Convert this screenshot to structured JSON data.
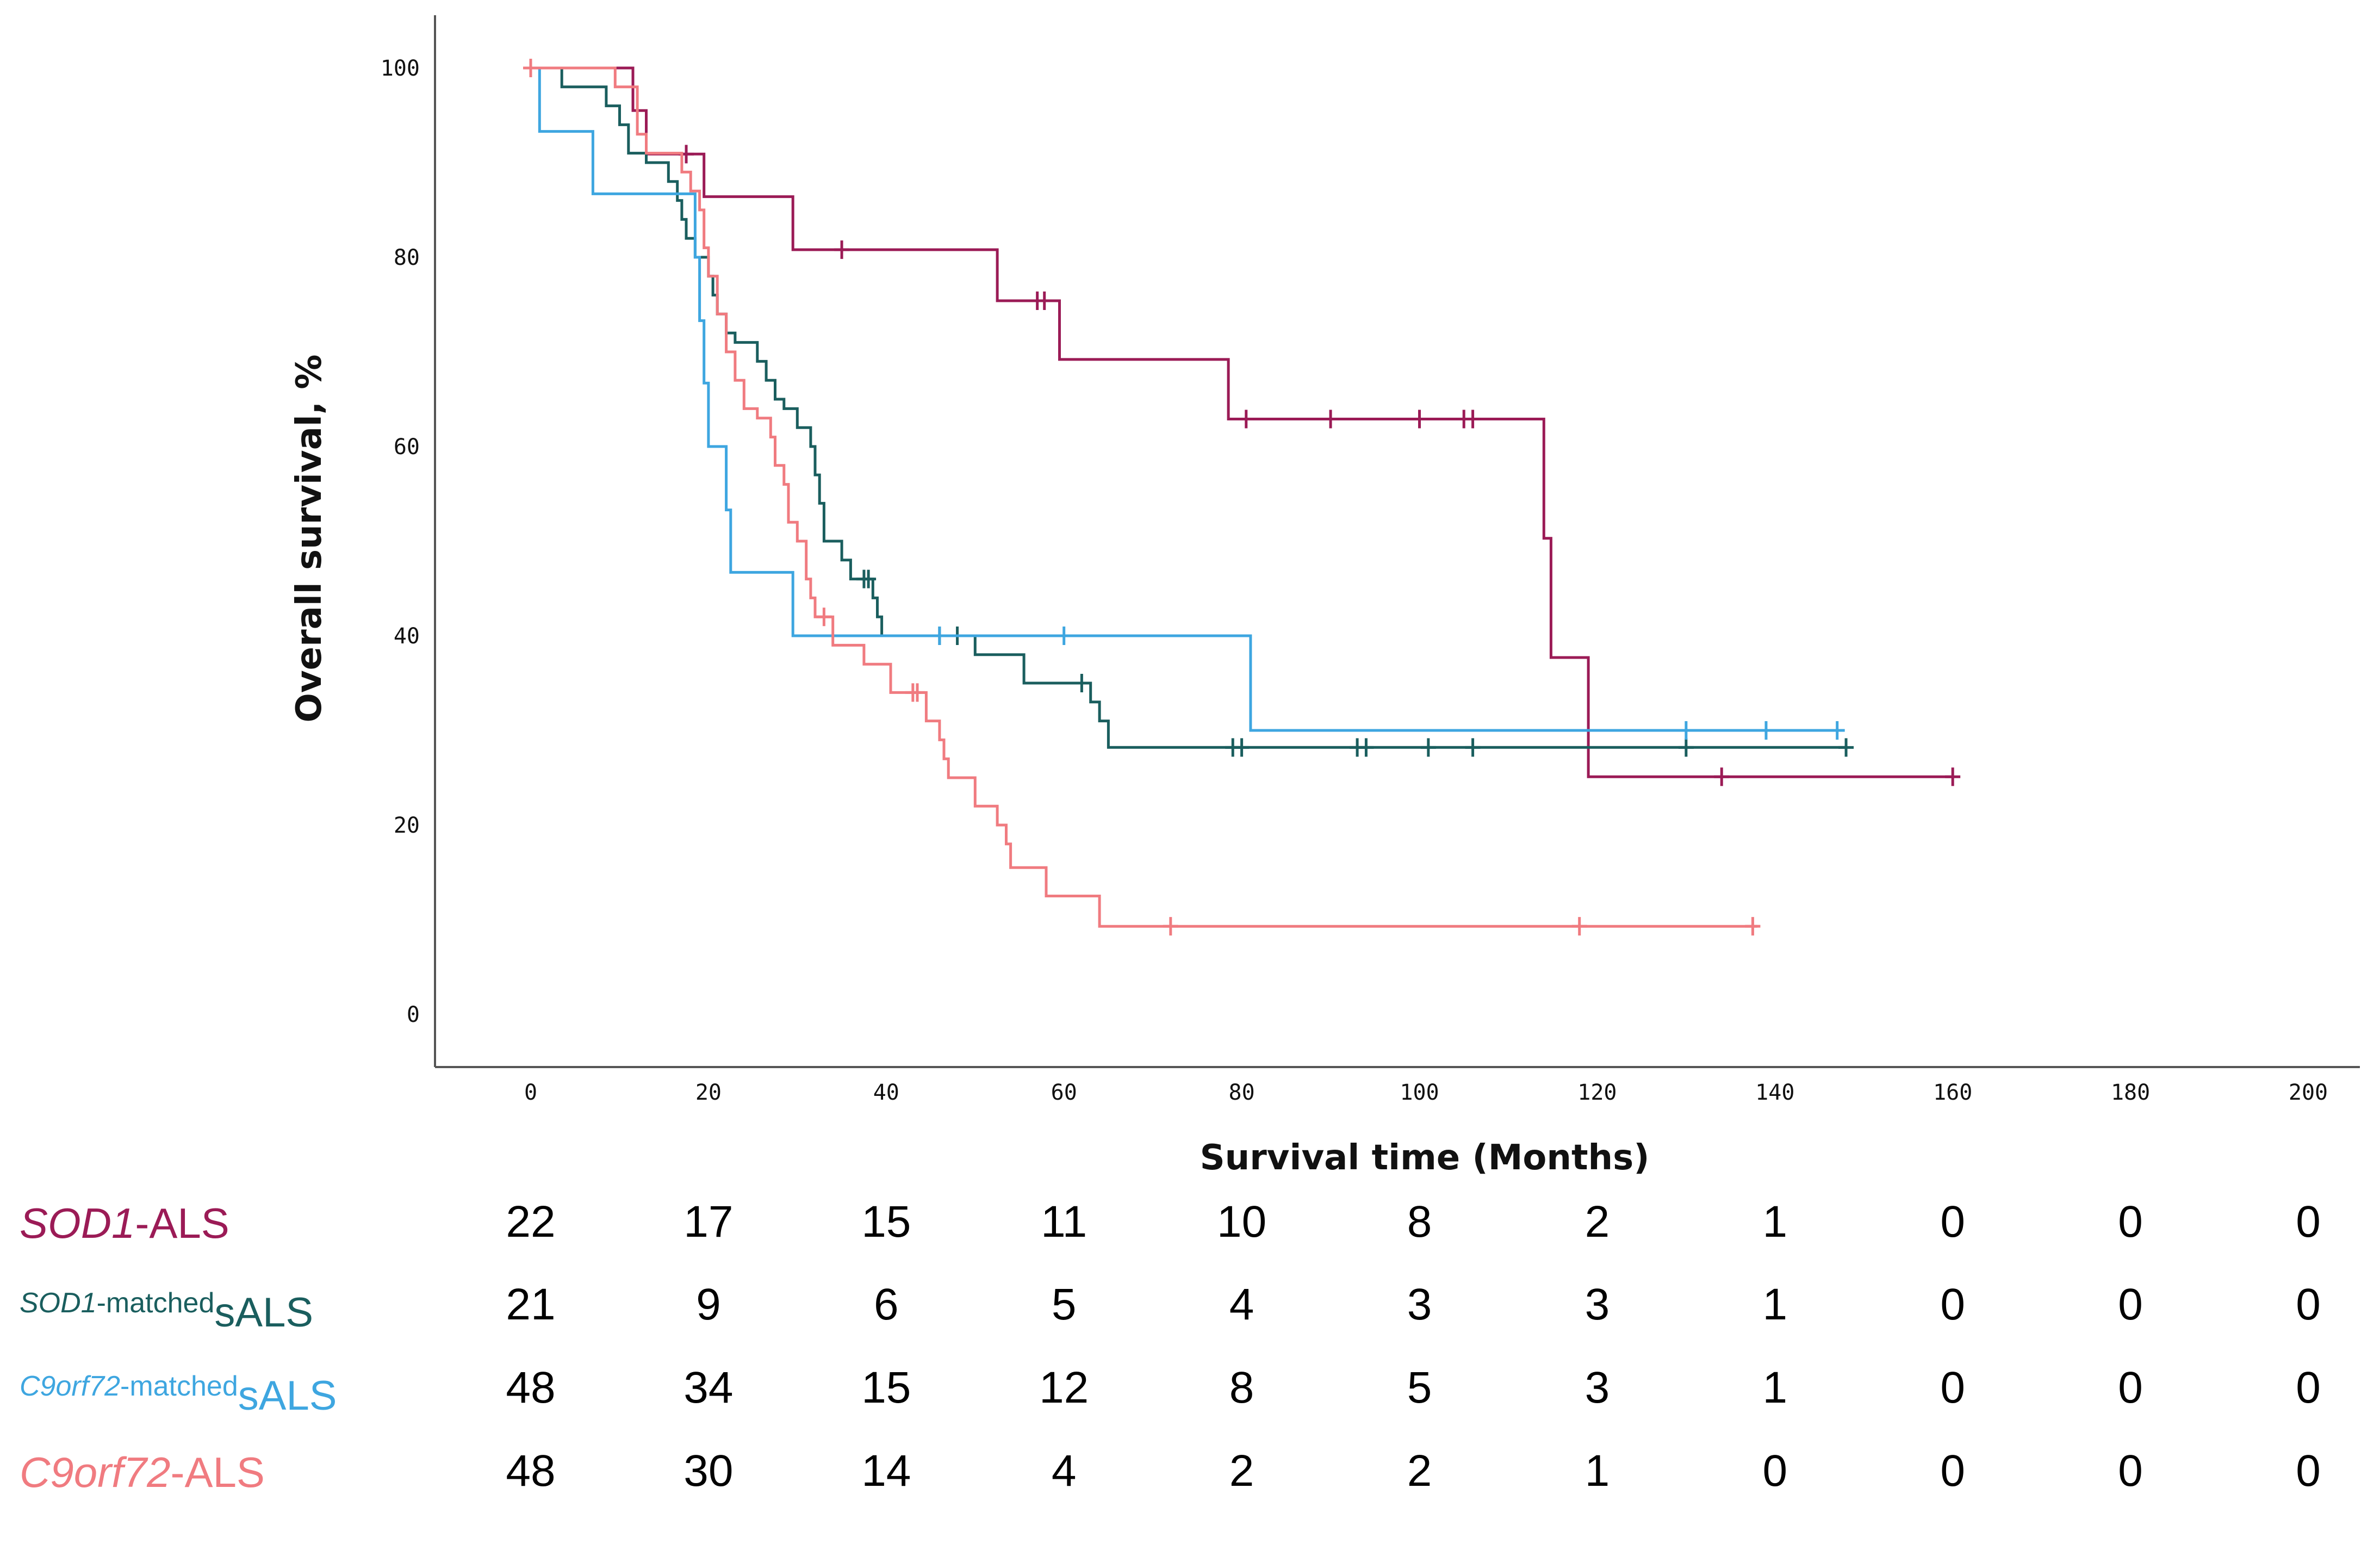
{
  "chart_data": {
    "type": "line",
    "title": "",
    "xlabel": "Survival time (Months)",
    "ylabel": "Overall survival, %",
    "xlim": [
      0,
      200
    ],
    "ylim": [
      0,
      100
    ],
    "xticks": [
      "0",
      "20",
      "40",
      "60",
      "80",
      "100",
      "120",
      "140",
      "160",
      "180",
      "200"
    ],
    "yticks": [
      "0",
      "20",
      "40",
      "60",
      "80",
      "100"
    ],
    "series": [
      {
        "name": "SOD1-ALS",
        "color": "#9b1b56",
        "steps": [
          [
            0,
            100
          ],
          [
            11.5,
            100
          ],
          [
            11.5,
            95.5
          ],
          [
            13,
            95.5
          ],
          [
            13,
            90.9
          ],
          [
            19.5,
            90.9
          ],
          [
            19.5,
            86.4
          ],
          [
            29.5,
            86.4
          ],
          [
            29.5,
            80.8
          ],
          [
            52.5,
            80.8
          ],
          [
            52.5,
            75.4
          ],
          [
            59.5,
            75.4
          ],
          [
            59.5,
            69.2
          ],
          [
            78.5,
            69.2
          ],
          [
            78.5,
            62.9
          ],
          [
            114,
            62.9
          ],
          [
            114,
            50.3
          ],
          [
            114.8,
            50.3
          ],
          [
            114.8,
            37.7
          ],
          [
            119,
            37.7
          ],
          [
            119,
            25.1
          ],
          [
            160,
            25.1
          ]
        ],
        "censors": [
          [
            17.5,
            90.9
          ],
          [
            35,
            80.8
          ],
          [
            57,
            75.4
          ],
          [
            57.8,
            75.4
          ],
          [
            80.5,
            62.9
          ],
          [
            90,
            62.9
          ],
          [
            100,
            62.9
          ],
          [
            105,
            62.9
          ],
          [
            106,
            62.9
          ],
          [
            134,
            25.1
          ],
          [
            160,
            25.1
          ]
        ]
      },
      {
        "name": "SOD1-matched sALS",
        "color": "#1a5e5e",
        "steps": [
          [
            0,
            100
          ],
          [
            3.5,
            100
          ],
          [
            3.5,
            98
          ],
          [
            8.5,
            98
          ],
          [
            8.5,
            96
          ],
          [
            10,
            96
          ],
          [
            10,
            94
          ],
          [
            11,
            94
          ],
          [
            11,
            91
          ],
          [
            13,
            91
          ],
          [
            13,
            90
          ],
          [
            15.5,
            90
          ],
          [
            15.5,
            88
          ],
          [
            16.5,
            88
          ],
          [
            16.5,
            86
          ],
          [
            17,
            86
          ],
          [
            17,
            84
          ],
          [
            17.5,
            84
          ],
          [
            17.5,
            82
          ],
          [
            18.5,
            82
          ],
          [
            18.5,
            80
          ],
          [
            20,
            80
          ],
          [
            20,
            78
          ],
          [
            20.5,
            78
          ],
          [
            20.5,
            76
          ],
          [
            21,
            76
          ],
          [
            21,
            74
          ],
          [
            22,
            74
          ],
          [
            22,
            72
          ],
          [
            23,
            72
          ],
          [
            23,
            71
          ],
          [
            25.5,
            71
          ],
          [
            25.5,
            69
          ],
          [
            26.5,
            69
          ],
          [
            26.5,
            67
          ],
          [
            27.5,
            67
          ],
          [
            27.5,
            65
          ],
          [
            28.5,
            65
          ],
          [
            28.5,
            64
          ],
          [
            30,
            64
          ],
          [
            30,
            62
          ],
          [
            31.5,
            62
          ],
          [
            31.5,
            60
          ],
          [
            32,
            60
          ],
          [
            32,
            57
          ],
          [
            32.5,
            57
          ],
          [
            32.5,
            54
          ],
          [
            33,
            54
          ],
          [
            33,
            50
          ],
          [
            35,
            50
          ],
          [
            35,
            48
          ],
          [
            36,
            48
          ],
          [
            36,
            46
          ],
          [
            38.5,
            46
          ],
          [
            38.5,
            44
          ],
          [
            39,
            44
          ],
          [
            39,
            42
          ],
          [
            39.5,
            42
          ],
          [
            39.5,
            40
          ],
          [
            50,
            40
          ],
          [
            50,
            38
          ],
          [
            55.5,
            38
          ],
          [
            55.5,
            35
          ],
          [
            63,
            35
          ],
          [
            63,
            33
          ],
          [
            64,
            33
          ],
          [
            64,
            31
          ],
          [
            65,
            31
          ],
          [
            65,
            28.2
          ],
          [
            148,
            28.2
          ]
        ],
        "censors": [
          [
            37.5,
            46
          ],
          [
            38,
            46
          ],
          [
            46,
            40
          ],
          [
            48,
            40
          ],
          [
            62,
            35
          ],
          [
            79,
            28.2
          ],
          [
            80,
            28.2
          ],
          [
            93,
            28.2
          ],
          [
            94,
            28.2
          ],
          [
            101,
            28.2
          ],
          [
            106,
            28.2
          ],
          [
            130,
            28.2
          ],
          [
            148,
            28.2
          ]
        ]
      },
      {
        "name": "C9orf72-matched sALS",
        "color": "#3ea6e0",
        "steps": [
          [
            0,
            100
          ],
          [
            1,
            100
          ],
          [
            1,
            93.3
          ],
          [
            7,
            93.3
          ],
          [
            7,
            86.7
          ],
          [
            18.5,
            86.7
          ],
          [
            18.5,
            80
          ],
          [
            19,
            80
          ],
          [
            19,
            73.3
          ],
          [
            19.5,
            73.3
          ],
          [
            19.5,
            66.7
          ],
          [
            20,
            66.7
          ],
          [
            20,
            60
          ],
          [
            22,
            60
          ],
          [
            22,
            53.3
          ],
          [
            22.5,
            53.3
          ],
          [
            22.5,
            46.7
          ],
          [
            29.5,
            46.7
          ],
          [
            29.5,
            40
          ],
          [
            81,
            40
          ],
          [
            81,
            30
          ],
          [
            147,
            30
          ]
        ],
        "censors": [
          [
            46,
            40
          ],
          [
            60,
            40
          ],
          [
            130,
            30
          ],
          [
            139,
            30
          ],
          [
            147,
            30
          ]
        ]
      },
      {
        "name": "C9orf72-ALS",
        "color": "#f07b80",
        "steps": [
          [
            0,
            100
          ],
          [
            9.5,
            100
          ],
          [
            9.5,
            98
          ],
          [
            12,
            98
          ],
          [
            12,
            93
          ],
          [
            13,
            93
          ],
          [
            13,
            91
          ],
          [
            17,
            91
          ],
          [
            17,
            89
          ],
          [
            18,
            89
          ],
          [
            18,
            87
          ],
          [
            19,
            87
          ],
          [
            19,
            85
          ],
          [
            19.5,
            85
          ],
          [
            19.5,
            81
          ],
          [
            20,
            81
          ],
          [
            20,
            78
          ],
          [
            21,
            78
          ],
          [
            21,
            74
          ],
          [
            22,
            74
          ],
          [
            22,
            70
          ],
          [
            23,
            70
          ],
          [
            23,
            67
          ],
          [
            24,
            67
          ],
          [
            24,
            64
          ],
          [
            25.5,
            64
          ],
          [
            25.5,
            63
          ],
          [
            27,
            63
          ],
          [
            27,
            61
          ],
          [
            27.5,
            61
          ],
          [
            27.5,
            58
          ],
          [
            28.5,
            58
          ],
          [
            28.5,
            56
          ],
          [
            29,
            56
          ],
          [
            29,
            52
          ],
          [
            30,
            52
          ],
          [
            30,
            50
          ],
          [
            31,
            50
          ],
          [
            31,
            46
          ],
          [
            31.5,
            46
          ],
          [
            31.5,
            44
          ],
          [
            32,
            44
          ],
          [
            32,
            42
          ],
          [
            34,
            42
          ],
          [
            34,
            39
          ],
          [
            37.5,
            39
          ],
          [
            37.5,
            37
          ],
          [
            40.5,
            37
          ],
          [
            40.5,
            34
          ],
          [
            44.5,
            34
          ],
          [
            44.5,
            31
          ],
          [
            46,
            31
          ],
          [
            46,
            29
          ],
          [
            46.5,
            29
          ],
          [
            46.5,
            27
          ],
          [
            47,
            27
          ],
          [
            47,
            25
          ],
          [
            50,
            25
          ],
          [
            50,
            22
          ],
          [
            52.5,
            22
          ],
          [
            52.5,
            20
          ],
          [
            53.5,
            20
          ],
          [
            53.5,
            18
          ],
          [
            54,
            18
          ],
          [
            54,
            15.5
          ],
          [
            58,
            15.5
          ],
          [
            58,
            12.5
          ],
          [
            64,
            12.5
          ],
          [
            64,
            9.3
          ],
          [
            138,
            9.3
          ]
        ],
        "censors": [
          [
            0,
            100
          ],
          [
            33,
            42
          ],
          [
            43,
            34
          ],
          [
            43.5,
            34
          ],
          [
            72,
            9.3
          ],
          [
            118,
            9.3
          ],
          [
            137.5,
            9.3
          ]
        ]
      }
    ]
  },
  "risk_table": {
    "rows": [
      {
        "name_italic": "SOD1",
        "name_rest": "-ALS",
        "sub": "",
        "color": "#9b1b56",
        "values": [
          "22",
          "17",
          "15",
          "11",
          "10",
          "8",
          "2",
          "1",
          "0",
          "0",
          "0"
        ]
      },
      {
        "name_italic": "SOD1",
        "name_rest": "-matched",
        "sub": "sALS",
        "color": "#1a5e5e",
        "values": [
          "21",
          "9",
          "6",
          "5",
          "4",
          "3",
          "3",
          "1",
          "0",
          "0",
          "0"
        ]
      },
      {
        "name_italic": "C9orf72",
        "name_rest": "-matched",
        "sub": "sALS",
        "color": "#3ea6e0",
        "values": [
          "48",
          "34",
          "15",
          "12",
          "8",
          "5",
          "3",
          "1",
          "0",
          "0",
          "0"
        ]
      },
      {
        "name_italic": "C9orf72",
        "name_rest": "-ALS",
        "sub": "",
        "color": "#f07b80",
        "values": [
          "48",
          "30",
          "14",
          "4",
          "2",
          "2",
          "1",
          "0",
          "0",
          "0",
          "0"
        ]
      }
    ]
  }
}
